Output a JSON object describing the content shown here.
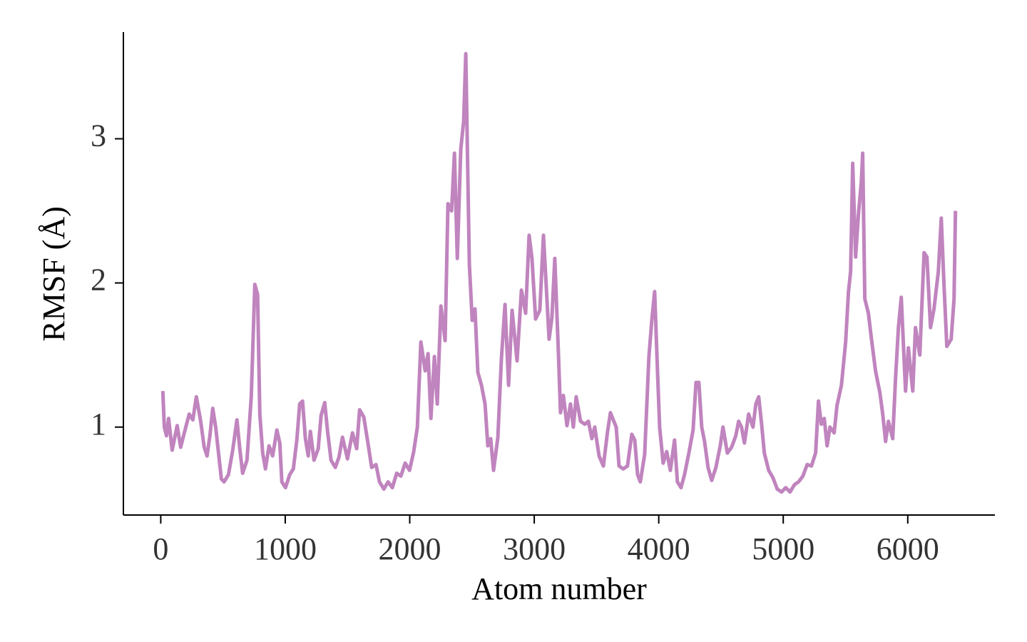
{
  "chart_data": {
    "type": "line",
    "xlabel": "Atom number",
    "ylabel": "RMSF (Å)",
    "xlim": [
      -300,
      6700
    ],
    "ylim": [
      0.39,
      3.74
    ],
    "xticks": [
      0,
      1000,
      2000,
      3000,
      4000,
      5000,
      6000
    ],
    "yticks": [
      1,
      2,
      3
    ],
    "grid": false,
    "series": [
      {
        "name": "RMSF",
        "color": "#c084be",
        "x": [
          17,
          29,
          46,
          63,
          92,
          132,
          160,
          189,
          229,
          258,
          286,
          321,
          349,
          372,
          395,
          418,
          441,
          464,
          487,
          509,
          544,
          578,
          612,
          635,
          658,
          693,
          727,
          756,
          778,
          796,
          819,
          841,
          870,
          899,
          933,
          956,
          973,
          1002,
          1036,
          1065,
          1093,
          1116,
          1139,
          1162,
          1185,
          1202,
          1231,
          1265,
          1288,
          1317,
          1340,
          1368,
          1402,
          1431,
          1460,
          1500,
          1540,
          1574,
          1597,
          1631,
          1666,
          1694,
          1729,
          1757,
          1792,
          1826,
          1860,
          1895,
          1929,
          1963,
          1998,
          2032,
          2061,
          2089,
          2124,
          2147,
          2170,
          2198,
          2221,
          2250,
          2284,
          2307,
          2336,
          2359,
          2382,
          2410,
          2433,
          2450,
          2467,
          2479,
          2502,
          2524,
          2547,
          2576,
          2605,
          2627,
          2650,
          2673,
          2708,
          2736,
          2765,
          2794,
          2822,
          2862,
          2897,
          2931,
          2959,
          2982,
          3011,
          3045,
          3074,
          3097,
          3119,
          3142,
          3165,
          3194,
          3211,
          3234,
          3263,
          3291,
          3314,
          3337,
          3372,
          3406,
          3435,
          3463,
          3486,
          3521,
          3555,
          3589,
          3612,
          3635,
          3658,
          3681,
          3715,
          3749,
          3784,
          3807,
          3830,
          3852,
          3887,
          3921,
          3944,
          3967,
          3990,
          4007,
          4035,
          4064,
          4093,
          4127,
          4150,
          4179,
          4207,
          4242,
          4276,
          4299,
          4322,
          4345,
          4368,
          4396,
          4425,
          4459,
          4494,
          4516,
          4551,
          4585,
          4619,
          4642,
          4665,
          4688,
          4722,
          4757,
          4780,
          4803,
          4826,
          4848,
          4883,
          4917,
          4952,
          4986,
          5020,
          5055,
          5089,
          5123,
          5158,
          5192,
          5226,
          5260,
          5283,
          5306,
          5329,
          5352,
          5375,
          5409,
          5432,
          5467,
          5501,
          5524,
          5541,
          5558,
          5581,
          5604,
          5627,
          5638,
          5655,
          5684,
          5707,
          5741,
          5776,
          5799,
          5822,
          5845,
          5879,
          5902,
          5925,
          5948,
          5982,
          6005,
          6040,
          6062,
          6097,
          6131,
          6154,
          6183,
          6211,
          6246,
          6269,
          6291,
          6314,
          6349,
          6372,
          6383
        ],
        "values": [
          1.25,
          1.0,
          0.94,
          1.06,
          0.84,
          1.01,
          0.86,
          0.96,
          1.09,
          1.05,
          1.21,
          1.04,
          0.86,
          0.8,
          0.94,
          1.13,
          1.0,
          0.82,
          0.64,
          0.62,
          0.67,
          0.84,
          1.05,
          0.85,
          0.68,
          0.77,
          1.21,
          1.99,
          1.92,
          1.09,
          0.82,
          0.71,
          0.87,
          0.8,
          0.98,
          0.89,
          0.62,
          0.58,
          0.67,
          0.71,
          0.91,
          1.16,
          1.18,
          0.92,
          0.8,
          0.97,
          0.77,
          0.85,
          1.08,
          1.17,
          0.97,
          0.77,
          0.72,
          0.79,
          0.93,
          0.78,
          0.96,
          0.85,
          1.12,
          1.07,
          0.88,
          0.72,
          0.74,
          0.62,
          0.57,
          0.62,
          0.58,
          0.68,
          0.66,
          0.75,
          0.7,
          0.83,
          1.0,
          1.59,
          1.39,
          1.51,
          1.06,
          1.49,
          1.16,
          1.84,
          1.6,
          2.55,
          2.5,
          2.9,
          2.17,
          2.93,
          3.12,
          3.59,
          2.73,
          2.13,
          1.74,
          1.82,
          1.38,
          1.29,
          1.16,
          0.87,
          0.92,
          0.7,
          0.93,
          1.47,
          1.85,
          1.29,
          1.81,
          1.46,
          1.95,
          1.79,
          2.33,
          2.17,
          1.75,
          1.81,
          2.33,
          1.97,
          1.61,
          1.76,
          2.17,
          1.51,
          1.1,
          1.22,
          1.01,
          1.16,
          1.0,
          1.21,
          1.04,
          1.02,
          1.04,
          0.92,
          1.0,
          0.8,
          0.73,
          0.97,
          1.1,
          1.05,
          1.0,
          0.73,
          0.71,
          0.73,
          0.95,
          0.91,
          0.67,
          0.62,
          0.81,
          1.49,
          1.74,
          1.94,
          1.39,
          1.0,
          0.75,
          0.83,
          0.7,
          0.91,
          0.62,
          0.58,
          0.67,
          0.82,
          0.98,
          1.31,
          1.31,
          1.0,
          0.9,
          0.72,
          0.63,
          0.72,
          0.87,
          1.0,
          0.82,
          0.86,
          0.94,
          1.04,
          1.0,
          0.89,
          1.09,
          1.0,
          1.16,
          1.21,
          1.02,
          0.82,
          0.7,
          0.65,
          0.57,
          0.55,
          0.58,
          0.55,
          0.6,
          0.62,
          0.66,
          0.74,
          0.73,
          0.82,
          1.18,
          1.02,
          1.06,
          0.87,
          1.0,
          0.96,
          1.15,
          1.29,
          1.59,
          1.94,
          2.08,
          2.83,
          2.18,
          2.48,
          2.7,
          2.9,
          1.89,
          1.79,
          1.62,
          1.39,
          1.24,
          1.09,
          0.9,
          1.04,
          0.92,
          1.34,
          1.69,
          1.9,
          1.25,
          1.55,
          1.25,
          1.69,
          1.5,
          2.21,
          2.18,
          1.69,
          1.82,
          2.08,
          2.45,
          1.99,
          1.56,
          1.61,
          1.89,
          2.5
        ]
      }
    ]
  }
}
